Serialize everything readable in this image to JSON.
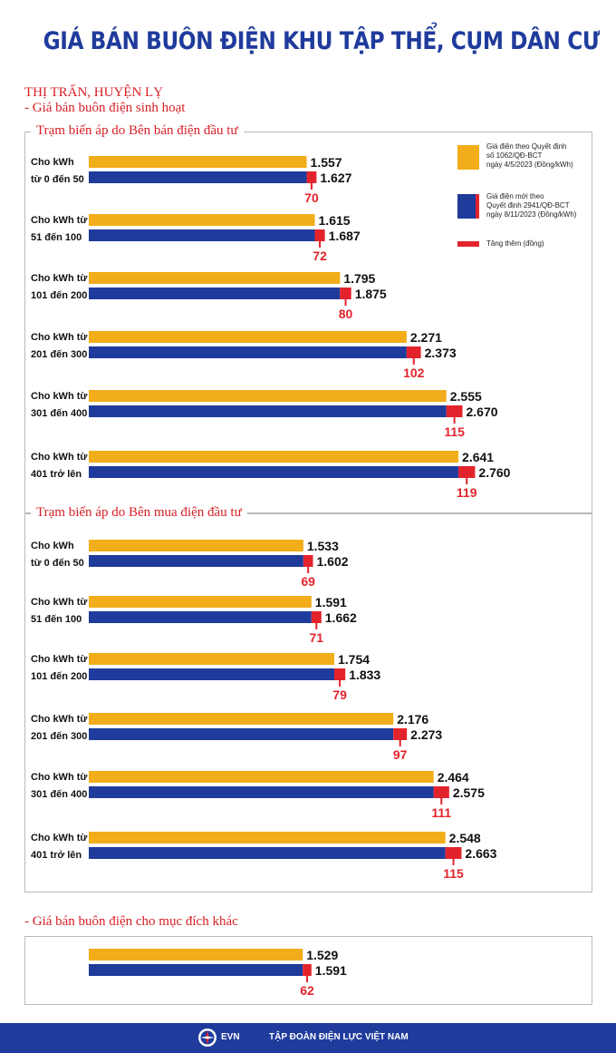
{
  "title": "GIÁ BÁN BUÔN ĐIỆN KHU TẬP THỂ, CỤM DÂN CƯ",
  "region": "THỊ TRẤN, HUYỆN LỴ",
  "subheading_domestic": "- Giá bán buôn điện sinh hoạt",
  "subheading_other": "- Giá bán buôn điện cho mục đích khác",
  "legend": {
    "old": "Giá điện theo Quyết định\nsố 1062/QĐ-BCT\nngày 4/5/2023 (Đồng/kWh)",
    "new": "Giá điện mới theo\nQuyết định 2941/QĐ-BCT\nngày 8/11/2023 (Đồng/kWh)",
    "increase": "Tăng thêm (đồng)"
  },
  "colors": {
    "old": "#f2ad1a",
    "new": "#1f3b9c",
    "increase": "#e3232c",
    "title": "#1f3b9c",
    "accent": "#d71f26"
  },
  "footer": {
    "logo": "EVN",
    "org": "TẬP ĐOÀN ĐIỆN LỰC VIỆT NAM"
  },
  "chart_data": [
    {
      "type": "bar",
      "title": "Trạm biến áp do Bên bán điện đầu tư",
      "categories": [
        [
          "Cho kWh",
          "từ 0 đến 50"
        ],
        [
          "Cho kWh từ",
          "51 đến 100"
        ],
        [
          "Cho kWh từ",
          "101 đến 200"
        ],
        [
          "Cho kWh từ",
          "201 đến 300"
        ],
        [
          "Cho kWh từ",
          "301 đến 400"
        ],
        [
          "Cho kWh từ",
          "401 trở lên"
        ]
      ],
      "series": [
        {
          "name": "Giá điện theo Quyết định số 1062/QĐ-BCT ngày 4/5/2023 (Đồng/kWh)",
          "values": [
            1557,
            1615,
            1795,
            2271,
            2555,
            2641
          ],
          "labels": [
            "1.557",
            "1.615",
            "1.795",
            "2.271",
            "2.555",
            "2.641"
          ]
        },
        {
          "name": "Giá điện mới theo Quyết định 2941/QĐ-BCT ngày 8/11/2023 (Đồng/kWh)",
          "values": [
            1627,
            1687,
            1875,
            2373,
            2670,
            2760
          ],
          "labels": [
            "1.627",
            "1.687",
            "1.875",
            "2.373",
            "2.670",
            "2.760"
          ]
        },
        {
          "name": "Tăng thêm (đồng)",
          "values": [
            70,
            72,
            80,
            102,
            115,
            119
          ],
          "labels": [
            "70",
            "72",
            "80",
            "102",
            "115",
            "119"
          ]
        }
      ]
    },
    {
      "type": "bar",
      "title": "Trạm biến áp do Bên mua điện đầu tư",
      "categories": [
        [
          "Cho kWh",
          "từ 0 đến 50"
        ],
        [
          "Cho kWh từ",
          "51 đến 100"
        ],
        [
          "Cho kWh từ",
          "101 đến 200"
        ],
        [
          "Cho kWh từ",
          "201 đến 300"
        ],
        [
          "Cho kWh từ",
          "301 đến 400"
        ],
        [
          "Cho kWh từ",
          "401 trở lên"
        ]
      ],
      "series": [
        {
          "name": "Giá điện theo Quyết định số 1062/QĐ-BCT ngày 4/5/2023 (Đồng/kWh)",
          "values": [
            1533,
            1591,
            1754,
            2176,
            2464,
            2548
          ],
          "labels": [
            "1.533",
            "1.591",
            "1.754",
            "2.176",
            "2.464",
            "2.548"
          ]
        },
        {
          "name": "Giá điện mới theo Quyết định 2941/QĐ-BCT ngày 8/11/2023 (Đồng/kWh)",
          "values": [
            1602,
            1662,
            1833,
            2273,
            2575,
            2663
          ],
          "labels": [
            "1.602",
            "1.662",
            "1.833",
            "2.273",
            "2.575",
            "2.663"
          ]
        },
        {
          "name": "Tăng thêm (đồng)",
          "values": [
            69,
            71,
            79,
            97,
            111,
            115
          ],
          "labels": [
            "69",
            "71",
            "79",
            "97",
            "111",
            "115"
          ]
        }
      ]
    },
    {
      "type": "bar",
      "title": "",
      "categories": [
        [
          "",
          ""
        ]
      ],
      "series": [
        {
          "name": "Giá điện theo Quyết định số 1062/QĐ-BCT ngày 4/5/2023 (Đồng/kWh)",
          "values": [
            1529
          ],
          "labels": [
            "1.529"
          ]
        },
        {
          "name": "Giá điện mới theo Quyết định 2941/QĐ-BCT ngày 8/11/2023 (Đồng/kWh)",
          "values": [
            1591
          ],
          "labels": [
            "1.591"
          ]
        },
        {
          "name": "Tăng thêm (đồng)",
          "values": [
            62
          ],
          "labels": [
            "62"
          ]
        }
      ]
    }
  ]
}
